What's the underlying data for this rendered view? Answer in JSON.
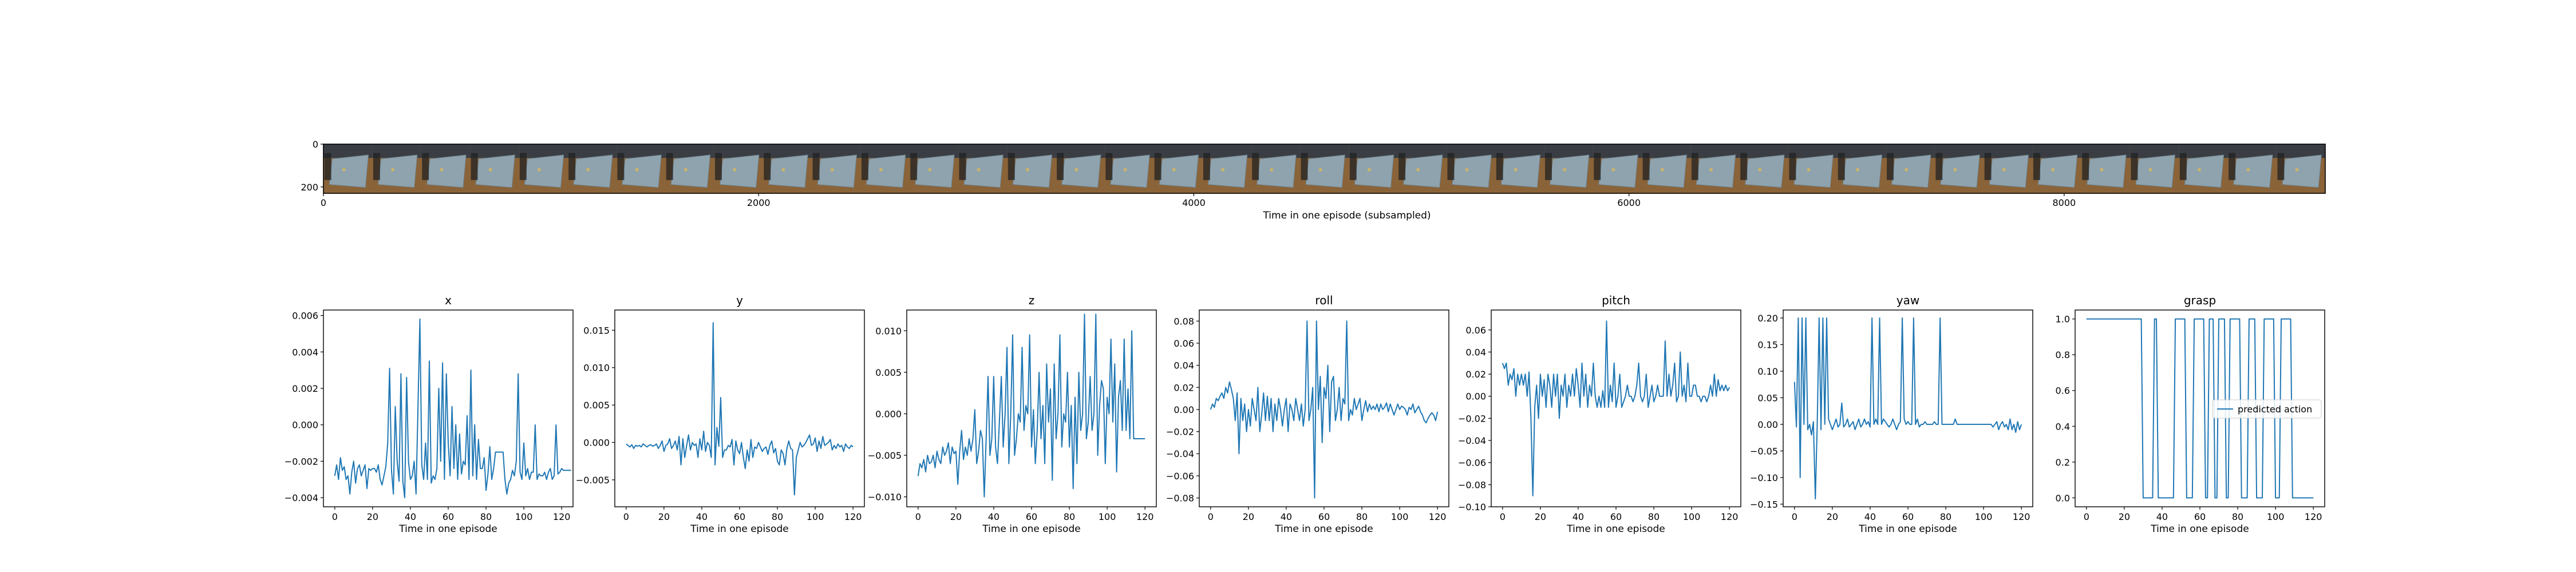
{
  "strip": {
    "xlabel": "Time in one episode (subsampled)",
    "xticks": [
      "0",
      "2000",
      "4000",
      "6000",
      "8000"
    ],
    "xtick_values": [
      0,
      2000,
      4000,
      6000,
      8000
    ],
    "xlim": [
      0,
      9200
    ],
    "yticks": [
      "0",
      "200"
    ],
    "ytick_values": [
      0,
      200
    ],
    "ylim": [
      0,
      230
    ],
    "frame_count": 41,
    "frame_colors": {
      "floor": "#8a6338",
      "tray": "#8fa3ae",
      "wall": "#3a3e44",
      "shadow": "#222222",
      "object": "#c9b46a"
    }
  },
  "legend": {
    "label": "predicted action"
  },
  "colors": {
    "series": "#1f77b4"
  },
  "chart_data": [
    {
      "type": "line",
      "title": "x",
      "xlabel": "Time in one episode",
      "xlim": [
        -6,
        126
      ],
      "ylim": [
        -0.0045,
        0.0063
      ],
      "xticks": [
        0,
        20,
        40,
        60,
        80,
        100,
        120
      ],
      "yticks": [
        -0.004,
        -0.002,
        0.0,
        0.002,
        0.004,
        0.006
      ],
      "ytick_labels": [
        "−0.004",
        "−0.002",
        "0.000",
        "0.002",
        "0.004",
        "0.006"
      ],
      "values": [
        -0.0028,
        -0.0022,
        -0.003,
        -0.0018,
        -0.0025,
        -0.0023,
        -0.003,
        -0.0028,
        -0.0038,
        -0.0026,
        -0.002,
        -0.0032,
        -0.0024,
        -0.0022,
        -0.0028,
        -0.0025,
        -0.0022,
        -0.0035,
        -0.0024,
        -0.0025,
        -0.0024,
        -0.0024,
        -0.0026,
        -0.0022,
        -0.003,
        -0.0033,
        -0.0028,
        -0.0023,
        -0.001,
        0.0031,
        -0.0025,
        -0.0038,
        0.001,
        -0.002,
        -0.0031,
        0.0028,
        -0.0031,
        -0.004,
        0.0026,
        -0.002,
        -0.003,
        -0.0028,
        -0.002,
        -0.0038,
        0.001,
        0.0058,
        -0.0022,
        -0.003,
        -0.001,
        -0.003,
        0.0035,
        -0.0032,
        -0.0028,
        -0.003,
        -0.0024,
        0.002,
        -0.002,
        0.0034,
        -0.003,
        0.0028,
        -0.001,
        -0.0028,
        0.001,
        -0.0024,
        0.0,
        -0.003,
        -0.0005,
        -0.0027,
        -0.002,
        -0.0022,
        0.0005,
        -0.003,
        0.003,
        -0.0028,
        0.0,
        -0.003,
        -0.0008,
        -0.0024,
        -0.0024,
        -0.0018,
        -0.0036,
        -0.0027,
        -0.0012,
        -0.003,
        -0.0024,
        -0.0015,
        -0.0015,
        -0.0015,
        -0.0015,
        -0.0015,
        -0.003,
        -0.0038,
        -0.0032,
        -0.003,
        -0.0025,
        -0.0028,
        -0.002,
        0.0028,
        -0.0026,
        -0.003,
        -0.001,
        -0.0028,
        -0.0024,
        -0.003,
        -0.0026,
        -0.0026,
        0.0,
        -0.003,
        -0.0027,
        -0.0028,
        -0.0028,
        -0.0026,
        -0.003,
        -0.0026,
        -0.0024,
        -0.003,
        -0.0028,
        0.0,
        -0.0027,
        -0.0026,
        -0.0024,
        -0.0025,
        -0.0025,
        -0.0025,
        -0.0025,
        -0.0025
      ]
    },
    {
      "type": "line",
      "title": "y",
      "xlabel": "Time in one episode",
      "xlim": [
        -6,
        126
      ],
      "ylim": [
        -0.0086,
        0.0177
      ],
      "xticks": [
        0,
        20,
        40,
        60,
        80,
        100,
        120
      ],
      "yticks": [
        -0.005,
        0.0,
        0.005,
        0.01,
        0.015
      ],
      "ytick_labels": [
        "−0.005",
        "0.000",
        "0.005",
        "0.010",
        "0.015"
      ],
      "values": [
        -0.0002,
        -0.0004,
        -0.0006,
        -0.0003,
        -0.0008,
        -0.0004,
        -0.0005,
        -0.0004,
        -0.0006,
        -0.0002,
        -0.0004,
        -0.0006,
        -0.0004,
        -0.0003,
        -0.0005,
        -0.0004,
        -0.0002,
        -0.0008,
        -0.0004,
        0.0002,
        -0.0012,
        -0.0004,
        -0.0002,
        0.0005,
        -0.0008,
        -0.0004,
        0.0002,
        -0.001,
        0.0008,
        -0.003,
        0.0005,
        -0.002,
        -0.0004,
        0.001,
        -0.001,
        0.0,
        -0.0004,
        -0.0002,
        -0.002,
        0.0005,
        -0.001,
        0.0015,
        -0.0012,
        0.0,
        -0.0004,
        -0.002,
        0.016,
        -0.003,
        0.002,
        -0.0005,
        0.006,
        -0.002,
        -0.001,
        -0.001,
        -0.0004,
        -0.0006,
        0.0004,
        -0.003,
        0.0002,
        -0.001,
        -0.0015,
        0.0,
        -0.002,
        -0.0035,
        -0.001,
        -0.0025,
        0.0004,
        -0.002,
        -0.0006,
        -0.0008,
        0.0,
        -0.0006,
        -0.0012,
        -0.0008,
        -0.0006,
        -0.0016,
        -0.0004,
        0.0002,
        -0.0014,
        -0.0008,
        -0.0025,
        -0.003,
        -0.001,
        -0.0015,
        -0.003,
        -0.0008,
        0.0002,
        -0.0008,
        -0.001,
        -0.007,
        -0.002,
        -0.001,
        0.0,
        -0.0006,
        -0.0004,
        0.0,
        0.0005,
        0.001,
        -0.0004,
        -0.0002,
        0.0006,
        -0.0012,
        0.0002,
        -0.0008,
        0.0008,
        -0.0004,
        -0.0002,
        0.0,
        0.0004,
        -0.001,
        -0.0004,
        -0.0008,
        -0.0002,
        -0.0006,
        -0.0004,
        -0.0012,
        -0.0002,
        -0.0006,
        -0.0008,
        -0.0004,
        -0.0006
      ]
    },
    {
      "type": "line",
      "title": "z",
      "xlabel": "Time in one episode",
      "xlim": [
        -6,
        126
      ],
      "ylim": [
        -0.0112,
        0.0125
      ],
      "xticks": [
        0,
        20,
        40,
        60,
        80,
        100,
        120
      ],
      "yticks": [
        -0.01,
        -0.005,
        0.0,
        0.005,
        0.01
      ],
      "ytick_labels": [
        "−0.010",
        "−0.005",
        "0.000",
        "0.005",
        "0.010"
      ],
      "values": [
        -0.0075,
        -0.006,
        -0.0065,
        -0.0055,
        -0.007,
        -0.005,
        -0.006,
        -0.0058,
        -0.005,
        -0.0065,
        -0.0045,
        -0.0055,
        -0.006,
        -0.004,
        -0.005,
        -0.0045,
        -0.0035,
        -0.006,
        -0.004,
        -0.0048,
        -0.0045,
        -0.0085,
        -0.0045,
        -0.002,
        -0.0055,
        -0.004,
        -0.005,
        -0.003,
        -0.0045,
        -0.003,
        0.0005,
        -0.006,
        -0.0045,
        -0.002,
        -0.003,
        -0.01,
        -0.003,
        0.0045,
        -0.005,
        -0.003,
        0.0045,
        -0.004,
        -0.006,
        -0.001,
        0.0045,
        -0.004,
        0.0,
        0.008,
        -0.006,
        0.0,
        0.0095,
        -0.005,
        -0.003,
        0.0,
        -0.001,
        0.008,
        -0.002,
        0.001,
        0.0,
        0.0095,
        -0.004,
        0.0005,
        -0.006,
        -0.002,
        0.005,
        -0.003,
        0.001,
        -0.006,
        0.006,
        -0.001,
        0.003,
        -0.008,
        0.006,
        -0.003,
        0.0,
        0.0095,
        -0.004,
        0.0,
        -0.001,
        0.005,
        -0.004,
        0.001,
        -0.009,
        0.002,
        -0.006,
        0.005,
        -0.002,
        0.0,
        0.012,
        -0.003,
        -0.001,
        0.0045,
        -0.002,
        0.0,
        0.012,
        -0.005,
        0.001,
        0.004,
        0.003,
        -0.006,
        0.002,
        0.0,
        0.009,
        -0.001,
        0.006,
        -0.007,
        0.002,
        0.004,
        -0.002,
        0.009,
        -0.002,
        0.003,
        -0.003,
        0.01,
        -0.003,
        -0.003,
        -0.003,
        -0.003,
        -0.003,
        -0.003,
        -0.003
      ]
    },
    {
      "type": "line",
      "title": "roll",
      "xlabel": "Time in one episode",
      "xlim": [
        -6,
        126
      ],
      "ylim": [
        -0.088,
        0.09
      ],
      "xticks": [
        0,
        20,
        40,
        60,
        80,
        100,
        120
      ],
      "yticks": [
        -0.08,
        -0.06,
        -0.04,
        -0.02,
        0.0,
        0.02,
        0.04,
        0.06,
        0.08
      ],
      "ytick_labels": [
        "−0.08",
        "−0.06",
        "−0.04",
        "−0.02",
        "0.00",
        "0.02",
        "0.04",
        "0.06",
        "0.08"
      ],
      "values": [
        0.0,
        0.005,
        0.002,
        0.01,
        0.008,
        0.012,
        0.015,
        0.01,
        0.02,
        0.015,
        0.025,
        0.018,
        0.01,
        -0.01,
        0.015,
        -0.04,
        0.01,
        -0.01,
        0.005,
        -0.02,
        0.0,
        -0.015,
        0.01,
        0.0,
        -0.01,
        0.02,
        -0.02,
        -0.005,
        0.015,
        -0.01,
        0.012,
        -0.01,
        0.01,
        -0.02,
        0.005,
        -0.01,
        0.01,
        0.0,
        -0.015,
        0.0,
        0.01,
        -0.02,
        0.005,
        0.0,
        -0.01,
        0.01,
        0.0,
        -0.01,
        0.005,
        -0.015,
        0.0,
        0.08,
        -0.01,
        0.0,
        0.02,
        -0.08,
        0.08,
        0.0,
        0.03,
        -0.03,
        0.02,
        0.01,
        0.04,
        -0.02,
        0.025,
        0.03,
        -0.01,
        0.0,
        0.02,
        -0.01,
        0.01,
        0.005,
        0.08,
        -0.01,
        0.0,
        -0.005,
        0.01,
        0.0,
        0.005,
        0.01,
        -0.01,
        0.0,
        0.008,
        -0.002,
        0.005,
        0.0,
        0.003,
        0.0,
        0.005,
        -0.002,
        0.005,
        0.0,
        0.002,
        0.006,
        -0.002,
        0.005,
        0.0,
        -0.005,
        0.0,
        0.005,
        0.0,
        0.003,
        0.002,
        0.0,
        -0.005,
        0.002,
        0.0,
        0.005,
        -0.003,
        0.0,
        0.003,
        -0.002,
        -0.005,
        -0.01,
        -0.012,
        -0.008,
        -0.005,
        -0.003,
        -0.005,
        -0.01,
        -0.002
      ]
    },
    {
      "type": "line",
      "title": "pitch",
      "xlabel": "Time in one episode",
      "xlim": [
        -6,
        126
      ],
      "ylim": [
        -0.1,
        0.078
      ],
      "xticks": [
        0,
        20,
        40,
        60,
        80,
        100,
        120
      ],
      "yticks": [
        -0.1,
        -0.08,
        -0.06,
        -0.04,
        -0.02,
        0.0,
        0.02,
        0.04,
        0.06
      ],
      "ytick_labels": [
        "−0.10",
        "−0.08",
        "−0.06",
        "−0.04",
        "−0.02",
        "0.00",
        "0.02",
        "0.04",
        "0.06"
      ],
      "values": [
        0.03,
        0.025,
        0.03,
        0.01,
        0.02,
        0.015,
        0.025,
        0.0,
        0.02,
        0.01,
        0.02,
        0.01,
        0.02,
        0.0,
        0.022,
        -0.02,
        -0.09,
        -0.01,
        0.01,
        -0.02,
        0.02,
        0.0,
        0.015,
        -0.01,
        0.02,
        0.01,
        -0.01,
        0.02,
        0.0,
        0.02,
        -0.02,
        0.01,
        0.0,
        0.02,
        -0.01,
        0.01,
        0.0,
        0.02,
        0.0,
        0.025,
        0.01,
        -0.01,
        0.03,
        0.0,
        0.02,
        -0.01,
        0.01,
        0.0,
        0.03,
        0.0,
        -0.01,
        0.0,
        -0.01,
        0.005,
        -0.01,
        0.068,
        -0.01,
        0.01,
        -0.005,
        0.03,
        -0.01,
        0.0,
        0.02,
        -0.01,
        -0.005,
        0.0,
        0.01,
        0.0,
        0.0,
        -0.005,
        0.0,
        0.01,
        0.03,
        0.0,
        -0.005,
        0.0,
        0.02,
        -0.01,
        0.0,
        0.01,
        -0.005,
        0.0,
        0.01,
        0.0,
        0.0,
        0.0,
        0.05,
        0.0,
        0.02,
        0.0,
        0.01,
        0.03,
        -0.005,
        0.0,
        0.04,
        0.0,
        0.01,
        -0.005,
        0.03,
        0.0,
        0.0,
        0.01,
        0.01,
        0.0,
        0.0,
        -0.005,
        0.0,
        0.0,
        -0.005,
        0.0,
        0.01,
        0.0,
        0.02,
        0.0,
        0.015,
        0.005,
        0.01,
        0.005,
        0.01,
        0.005,
        0.008
      ]
    },
    {
      "type": "line",
      "title": "yaw",
      "xlabel": "Time in one episode",
      "xlim": [
        -6,
        126
      ],
      "ylim": [
        -0.155,
        0.215
      ],
      "xticks": [
        0,
        20,
        40,
        60,
        80,
        100,
        120
      ],
      "yticks": [
        -0.15,
        -0.1,
        -0.05,
        0.0,
        0.05,
        0.1,
        0.15,
        0.2
      ],
      "ytick_labels": [
        "−0.15",
        "−0.10",
        "−0.05",
        "0.00",
        "0.05",
        "0.10",
        "0.15",
        "0.20"
      ],
      "values": [
        0.08,
        -0.005,
        0.2,
        -0.1,
        0.2,
        0.0,
        0.2,
        -0.01,
        0.0,
        -0.02,
        0.005,
        -0.14,
        0.0,
        0.2,
        -0.01,
        0.2,
        0.0,
        0.2,
        0.01,
        0.0,
        -0.01,
        0.0,
        0.01,
        -0.005,
        0.0,
        0.04,
        -0.005,
        0.0,
        0.01,
        -0.005,
        0.0,
        0.005,
        -0.01,
        0.0,
        0.01,
        -0.005,
        0.0,
        0.01,
        0.0,
        0.005,
        -0.005,
        0.2,
        0.0,
        0.01,
        0.0,
        0.2,
        0.0,
        0.01,
        0.005,
        0.0,
        -0.005,
        0.0,
        0.01,
        0.0,
        -0.01,
        0.0,
        0.005,
        0.2,
        0.01,
        0.0,
        0.005,
        0.0,
        0.0,
        0.2,
        0.0,
        0.01,
        -0.005,
        0.0,
        0.0,
        0.005,
        0.0,
        0.0,
        0.0,
        0.0,
        0.005,
        0.0,
        0.0,
        0.2,
        0.0,
        0.0,
        0.0,
        0.0,
        0.0,
        0.0,
        0.0,
        0.01,
        0.0,
        0.0,
        0.0,
        0.0,
        0.0,
        0.0,
        0.0,
        0.0,
        0.0,
        0.0,
        0.0,
        0.0,
        0.0,
        0.0,
        0.0,
        0.0,
        0.0,
        0.0,
        0.0,
        -0.005,
        0.0,
        0.005,
        -0.01,
        0.0,
        0.005,
        -0.005,
        0.0,
        -0.01,
        0.01,
        -0.01,
        0.0,
        -0.015,
        0.005,
        -0.01,
        0.0
      ]
    },
    {
      "type": "line",
      "title": "grasp",
      "xlabel": "Time in one episode",
      "xlim": [
        -6,
        126
      ],
      "ylim": [
        -0.05,
        1.05
      ],
      "xticks": [
        0,
        20,
        40,
        60,
        80,
        100,
        120
      ],
      "yticks": [
        0.0,
        0.2,
        0.4,
        0.6,
        0.8,
        1.0
      ],
      "ytick_labels": [
        "0.0",
        "0.2",
        "0.4",
        "0.6",
        "0.8",
        "1.0"
      ],
      "series": [
        {
          "name": "predicted action"
        }
      ],
      "legend_position": "center-right",
      "values": [
        1,
        1,
        1,
        1,
        1,
        1,
        1,
        1,
        1,
        1,
        1,
        1,
        1,
        1,
        1,
        1,
        1,
        1,
        1,
        1,
        1,
        1,
        1,
        1,
        1,
        1,
        1,
        1,
        1,
        1,
        0,
        0,
        0,
        0,
        0,
        0,
        1,
        1,
        0,
        0,
        0,
        0,
        0,
        0,
        0,
        0,
        0,
        1,
        1,
        1,
        1,
        1,
        1,
        0,
        0,
        0,
        0,
        1,
        1,
        1,
        1,
        1,
        1,
        0,
        0,
        1,
        1,
        1,
        0,
        0,
        1,
        1,
        1,
        1,
        0,
        0,
        1,
        1,
        1,
        1,
        1,
        1,
        0,
        0,
        0,
        0,
        1,
        1,
        1,
        1,
        0,
        0,
        0,
        0,
        1,
        1,
        1,
        1,
        1,
        1,
        0,
        0,
        0,
        1,
        1,
        1,
        1,
        1,
        1,
        0,
        0,
        0,
        0,
        0,
        0,
        0,
        0,
        0,
        0,
        0,
        0
      ]
    }
  ]
}
